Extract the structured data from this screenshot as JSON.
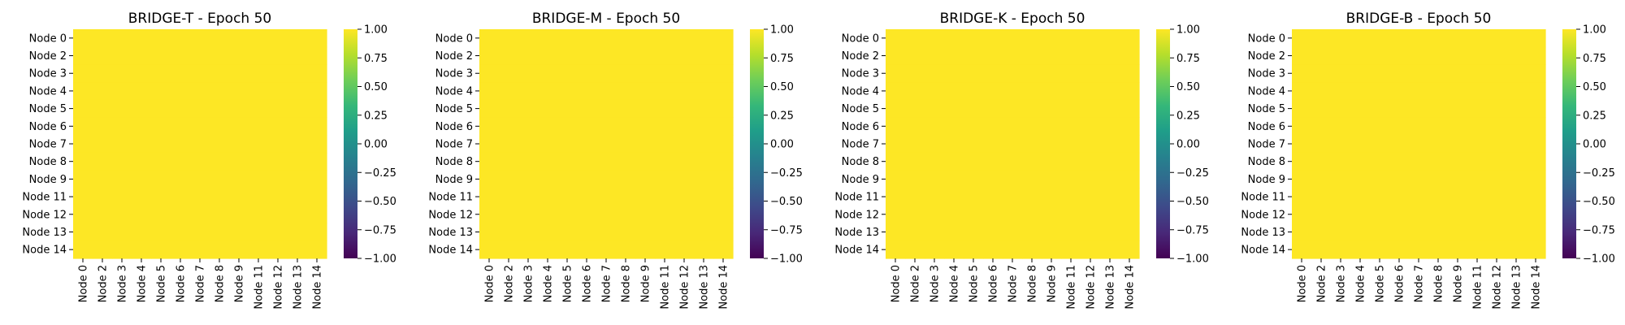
{
  "colormap_colors": [
    "#440154",
    "#482878",
    "#3e4989",
    "#31688e",
    "#26828e",
    "#1f9e89",
    "#35b779",
    "#6ece58",
    "#b5de2b",
    "#fde725"
  ],
  "chart_data": [
    {
      "type": "heatmap",
      "title": "BRIDGE-T - Epoch 50",
      "row_labels": [
        "Node 0",
        "Node 2",
        "Node 3",
        "Node 4",
        "Node 5",
        "Node 6",
        "Node 7",
        "Node 8",
        "Node 9",
        "Node 11",
        "Node 12",
        "Node 13",
        "Node 14"
      ],
      "col_labels": [
        "Node 0",
        "Node 2",
        "Node 3",
        "Node 4",
        "Node 5",
        "Node 6",
        "Node 7",
        "Node 8",
        "Node 9",
        "Node 11",
        "Node 12",
        "Node 13",
        "Node 14"
      ],
      "cell_value": 1.0,
      "vmin": -1.0,
      "vmax": 1.0,
      "colorbar_ticks": [
        "1.00",
        "0.75",
        "0.50",
        "0.25",
        "0.00",
        "−0.25",
        "−0.50",
        "−0.75",
        "−1.00"
      ],
      "colormap": "viridis"
    },
    {
      "type": "heatmap",
      "title": "BRIDGE-M - Epoch 50",
      "row_labels": [
        "Node 0",
        "Node 2",
        "Node 3",
        "Node 4",
        "Node 5",
        "Node 6",
        "Node 7",
        "Node 8",
        "Node 9",
        "Node 11",
        "Node 12",
        "Node 13",
        "Node 14"
      ],
      "col_labels": [
        "Node 0",
        "Node 2",
        "Node 3",
        "Node 4",
        "Node 5",
        "Node 6",
        "Node 7",
        "Node 8",
        "Node 9",
        "Node 11",
        "Node 12",
        "Node 13",
        "Node 14"
      ],
      "cell_value": 1.0,
      "vmin": -1.0,
      "vmax": 1.0,
      "colorbar_ticks": [
        "1.00",
        "0.75",
        "0.50",
        "0.25",
        "0.00",
        "−0.25",
        "−0.50",
        "−0.75",
        "−1.00"
      ],
      "colormap": "viridis"
    },
    {
      "type": "heatmap",
      "title": "BRIDGE-K - Epoch 50",
      "row_labels": [
        "Node 0",
        "Node 2",
        "Node 3",
        "Node 4",
        "Node 5",
        "Node 6",
        "Node 7",
        "Node 8",
        "Node 9",
        "Node 11",
        "Node 12",
        "Node 13",
        "Node 14"
      ],
      "col_labels": [
        "Node 0",
        "Node 2",
        "Node 3",
        "Node 4",
        "Node 5",
        "Node 6",
        "Node 7",
        "Node 8",
        "Node 9",
        "Node 11",
        "Node 12",
        "Node 13",
        "Node 14"
      ],
      "cell_value": 1.0,
      "vmin": -1.0,
      "vmax": 1.0,
      "colorbar_ticks": [
        "1.00",
        "0.75",
        "0.50",
        "0.25",
        "0.00",
        "−0.25",
        "−0.50",
        "−0.75",
        "−1.00"
      ],
      "colormap": "viridis"
    },
    {
      "type": "heatmap",
      "title": "BRIDGE-B - Epoch 50",
      "row_labels": [
        "Node 0",
        "Node 2",
        "Node 3",
        "Node 4",
        "Node 5",
        "Node 6",
        "Node 7",
        "Node 8",
        "Node 9",
        "Node 11",
        "Node 12",
        "Node 13",
        "Node 14"
      ],
      "col_labels": [
        "Node 0",
        "Node 2",
        "Node 3",
        "Node 4",
        "Node 5",
        "Node 6",
        "Node 7",
        "Node 8",
        "Node 9",
        "Node 11",
        "Node 12",
        "Node 13",
        "Node 14"
      ],
      "cell_value": 1.0,
      "vmin": -1.0,
      "vmax": 1.0,
      "colorbar_ticks": [
        "1.00",
        "0.75",
        "0.50",
        "0.25",
        "0.00",
        "−0.25",
        "−0.50",
        "−0.75",
        "−1.00"
      ],
      "colormap": "viridis"
    }
  ]
}
